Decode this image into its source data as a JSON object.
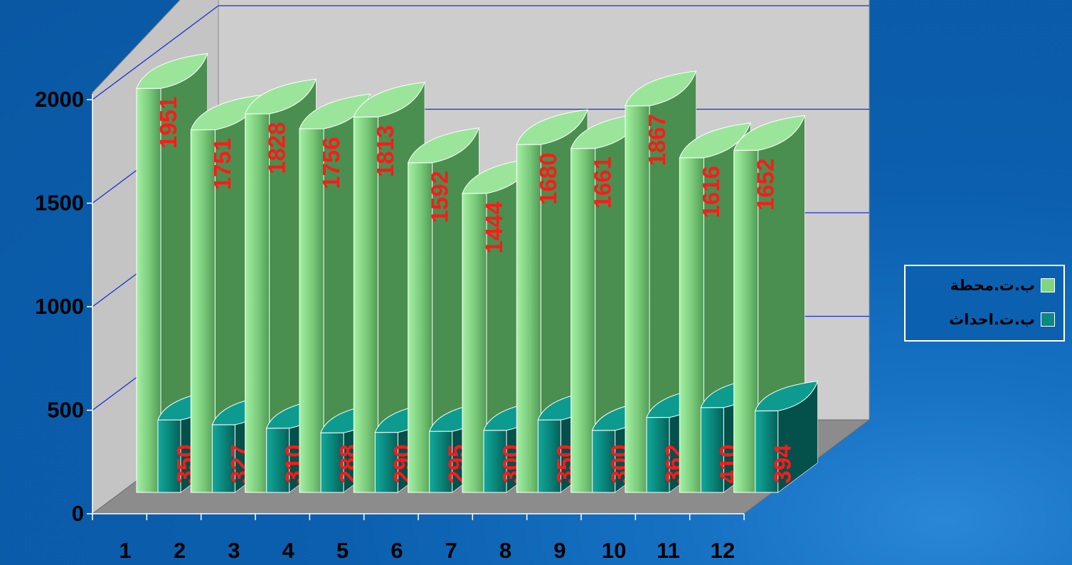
{
  "chart_data": {
    "type": "bar",
    "categories": [
      "1",
      "2",
      "3",
      "4",
      "5",
      "6",
      "7",
      "8",
      "9",
      "10",
      "11",
      "12"
    ],
    "series": [
      {
        "name": "ب.ت.محطة",
        "values": [
          1951,
          1751,
          1828,
          1756,
          1813,
          1592,
          1444,
          1680,
          1661,
          1867,
          1616,
          1652
        ],
        "color": "#7fd67f"
      },
      {
        "name": "ب.ت.احداث",
        "values": [
          350,
          327,
          310,
          288,
          290,
          295,
          300,
          350,
          300,
          362,
          410,
          394
        ],
        "color": "#0a8a80"
      }
    ],
    "y_ticks": [
      "0",
      "500",
      "1000",
      "1500",
      "2000"
    ],
    "ylim": [
      0,
      2000
    ],
    "grid": true,
    "legend_position": "right",
    "data_label_color": "#ff1a1a"
  }
}
